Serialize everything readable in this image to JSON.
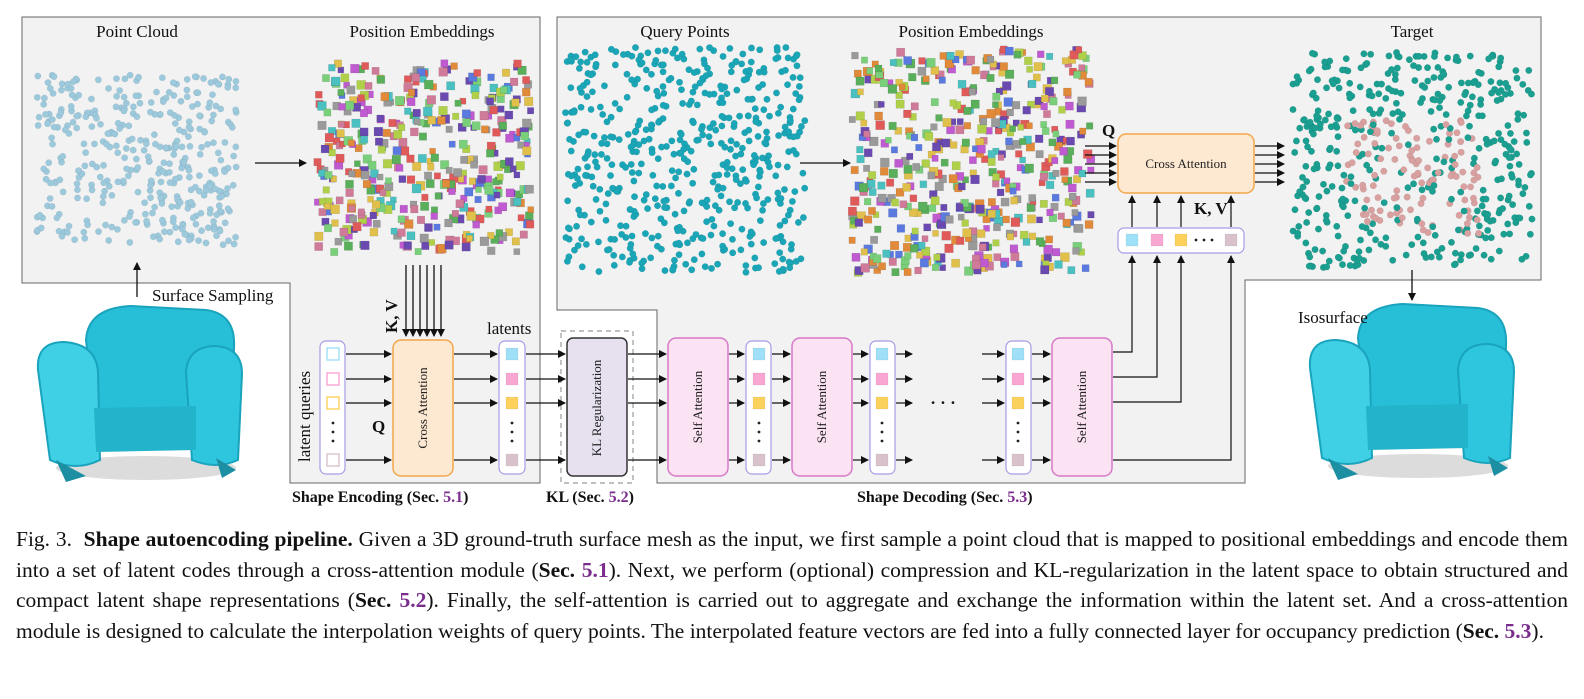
{
  "figure": {
    "labels": {
      "point_cloud": "Point Cloud",
      "pos_emb_left": "Position Embeddings",
      "query_points": "Query Points",
      "pos_emb_right": "Position Embeddings",
      "target": "Target",
      "surface_sampling": "Surface Sampling",
      "isosurface": "Isosurface",
      "latents": "latents",
      "latent_queries": "latent queries",
      "kv_left": "K, V",
      "q_left": "Q",
      "q_right": "Q",
      "kv_right": "K, V",
      "dots_mid": "· · ·"
    },
    "blocks": {
      "cross_attention_enc": "Cross Attention",
      "kl_regularization": "KL Regularization",
      "self_attention": "Self Attention",
      "cross_attention_dec": "Cross Attention"
    },
    "sections": {
      "encoding_text": "Shape Encoding (Sec. ",
      "encoding_num": "5.1",
      "kl_text": "KL (Sec. ",
      "kl_num": "5.2",
      "decoding_text": "Shape Decoding (Sec. ",
      "decoding_num": "5.3",
      "close": ")"
    },
    "colors": {
      "panel_bg": "#f2f2f2",
      "point_blue": "#9cc9dc",
      "query_teal": "#1aa6b7",
      "target_teal": "#1a9f91",
      "target_pink": "#d9a0a0",
      "cross_attention_fill": "#fde9d2",
      "cross_attention_stroke": "#f3a64b",
      "self_attention_fill": "#fbe3f3",
      "self_attention_stroke": "#d978c7",
      "kl_fill": "#e6e0ef",
      "latent_stroke": "#a59ce6",
      "chair": "#27bfd8",
      "section_number": "#7b2d8e",
      "token_colors": [
        "#9fe0f8",
        "#f9a6d2",
        "#fcd25c",
        "#d9c2cc"
      ]
    }
  },
  "caption": {
    "prefix": "Fig. 3.",
    "title": "Shape autoencoding pipeline.",
    "part1": " Given a 3D ground-truth surface mesh as the input, we first sample a point cloud that is mapped to positional embeddings and encode them into a set of latent codes through a cross-attention module (",
    "ref1_label": "Sec.",
    "ref1_num": "5.1",
    "part2": "). Next, we perform (optional) compression and KL-regularization in the latent space to obtain structured and compact latent shape representations (",
    "ref2_label": "Sec.",
    "ref2_num": "5.2",
    "part3": "). Finally, the self-attention is carried out to aggregate and exchange the information within the latent set. And a cross-attention module is designed to calculate the interpolation weights of query points. The interpolated feature vectors are fed into a fully connected layer for occupancy prediction (",
    "ref3_label": "Sec.",
    "ref3_num": "5.3",
    "part4": ")."
  }
}
